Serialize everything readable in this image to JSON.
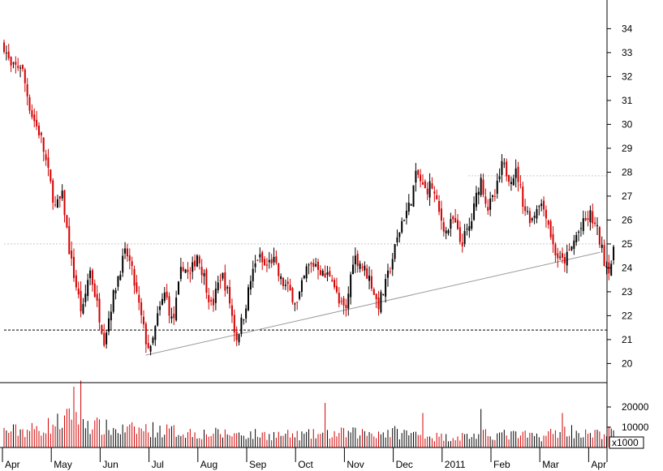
{
  "chart_data": {
    "type": "candlestick",
    "price_axis": {
      "ticks": [
        20,
        21,
        22,
        23,
        24,
        25,
        26,
        27,
        28,
        29,
        30,
        31,
        32,
        33,
        34
      ],
      "ylim": [
        19.2,
        35.2
      ]
    },
    "volume_axis": {
      "ticks": [
        10000,
        20000
      ],
      "ylim": [
        0,
        32000
      ],
      "unit_label": "x1000"
    },
    "x_axis": {
      "labels": [
        "Apr",
        "May",
        "Jun",
        "Jul",
        "Aug",
        "Sep",
        "Oct",
        "Nov",
        "Dec",
        "2011",
        "Feb",
        "Mar",
        "Apr"
      ]
    },
    "reference_lines": [
      {
        "style": "dotted",
        "color": "#c8c8c8",
        "y": 27.85,
        "from_month": 9.5
      },
      {
        "style": "dotted",
        "color": "#c8c8c8",
        "y": 25.0,
        "from_month": 0
      },
      {
        "style": "dashed",
        "color": "#000000",
        "y": 21.4,
        "from_month": 0
      }
    ],
    "trendline": {
      "color": "#9a9a9a",
      "from": {
        "month": 2.9,
        "price": 20.35
      },
      "to": {
        "month": 12.2,
        "price": 24.65
      }
    },
    "colors": {
      "up": "#000000",
      "down": "#d40000",
      "grid": "#c8c8c8"
    },
    "price_path": [
      [
        0.0,
        33.3
      ],
      [
        0.15,
        32.3
      ],
      [
        0.35,
        32.5
      ],
      [
        0.55,
        30.5
      ],
      [
        0.75,
        29.5
      ],
      [
        0.95,
        27.5
      ],
      [
        1.05,
        26.5
      ],
      [
        1.2,
        27.0
      ],
      [
        1.35,
        24.5
      ],
      [
        1.5,
        23.0
      ],
      [
        1.6,
        22.0
      ],
      [
        1.75,
        24.0
      ],
      [
        1.9,
        22.5
      ],
      [
        2.05,
        21.0
      ],
      [
        2.2,
        22.5
      ],
      [
        2.35,
        23.8
      ],
      [
        2.5,
        24.7
      ],
      [
        2.6,
        24.0
      ],
      [
        2.75,
        22.5
      ],
      [
        2.9,
        21.0
      ],
      [
        3.0,
        20.5
      ],
      [
        3.15,
        22.0
      ],
      [
        3.3,
        23.0
      ],
      [
        3.45,
        21.6
      ],
      [
        3.65,
        24.2
      ],
      [
        3.8,
        23.6
      ],
      [
        3.95,
        24.6
      ],
      [
        4.1,
        23.6
      ],
      [
        4.25,
        22.3
      ],
      [
        4.45,
        23.8
      ],
      [
        4.6,
        22.8
      ],
      [
        4.75,
        21.0
      ],
      [
        4.9,
        22.0
      ],
      [
        5.05,
        23.5
      ],
      [
        5.2,
        24.5
      ],
      [
        5.35,
        24.0
      ],
      [
        5.5,
        24.4
      ],
      [
        5.65,
        23.5
      ],
      [
        5.85,
        23.0
      ],
      [
        6.0,
        22.5
      ],
      [
        6.2,
        24.0
      ],
      [
        6.4,
        24.2
      ],
      [
        6.55,
        23.6
      ],
      [
        6.7,
        23.8
      ],
      [
        6.85,
        22.5
      ],
      [
        7.0,
        22.2
      ],
      [
        7.15,
        24.5
      ],
      [
        7.3,
        24.2
      ],
      [
        7.5,
        23.5
      ],
      [
        7.65,
        22.4
      ],
      [
        7.8,
        23.2
      ],
      [
        8.0,
        24.8
      ],
      [
        8.15,
        26.0
      ],
      [
        8.3,
        26.6
      ],
      [
        8.45,
        28.0
      ],
      [
        8.6,
        27.2
      ],
      [
        8.75,
        27.5
      ],
      [
        8.9,
        26.3
      ],
      [
        9.05,
        25.5
      ],
      [
        9.2,
        26.0
      ],
      [
        9.35,
        25.0
      ],
      [
        9.55,
        25.8
      ],
      [
        9.75,
        27.8
      ],
      [
        9.9,
        26.5
      ],
      [
        10.05,
        27.0
      ],
      [
        10.2,
        28.3
      ],
      [
        10.35,
        27.8
      ],
      [
        10.5,
        28.0
      ],
      [
        10.65,
        26.5
      ],
      [
        10.8,
        26.0
      ],
      [
        10.95,
        26.8
      ],
      [
        11.1,
        26.3
      ],
      [
        11.25,
        24.8
      ],
      [
        11.4,
        24.2
      ],
      [
        11.55,
        24.5
      ],
      [
        11.7,
        25.3
      ],
      [
        11.85,
        25.8
      ],
      [
        12.0,
        26.2
      ],
      [
        12.15,
        25.5
      ],
      [
        12.3,
        24.2
      ],
      [
        12.4,
        24.0
      ],
      [
        12.5,
        24.8
      ]
    ],
    "volume_path": [
      [
        0.0,
        8000
      ],
      [
        0.7,
        9000
      ],
      [
        1.2,
        13000
      ],
      [
        1.5,
        16000
      ],
      [
        1.8,
        11000
      ],
      [
        2.3,
        8500
      ],
      [
        3.0,
        9000
      ],
      [
        4.0,
        7000
      ],
      [
        5.0,
        6500
      ],
      [
        6.0,
        6000
      ],
      [
        7.0,
        7000
      ],
      [
        8.0,
        7500
      ],
      [
        9.0,
        5000
      ],
      [
        10.0,
        6500
      ],
      [
        11.0,
        5500
      ],
      [
        11.5,
        9000
      ],
      [
        12.0,
        6000
      ],
      [
        12.5,
        8000
      ]
    ],
    "volume_spikes": [
      [
        1.45,
        30000
      ],
      [
        1.57,
        33000
      ],
      [
        6.55,
        22000
      ],
      [
        8.55,
        17000
      ],
      [
        9.75,
        19000
      ],
      [
        11.45,
        17000
      ]
    ]
  }
}
